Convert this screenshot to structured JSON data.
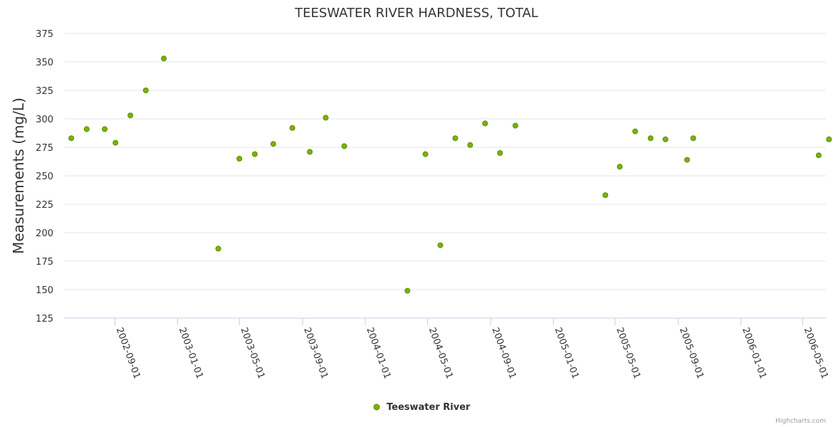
{
  "chart_data": {
    "type": "scatter",
    "title": "TEESWATER RIVER HARDNESS, TOTAL",
    "ylabel": "Measurements (mg/L)",
    "xlabel": "",
    "ylim": [
      125,
      375
    ],
    "yticks": [
      125,
      150,
      175,
      200,
      225,
      250,
      275,
      300,
      325,
      350,
      375
    ],
    "xlim": [
      "2002-05-25",
      "2006-06-15"
    ],
    "xticks": [
      "2002-09-01",
      "2003-01-01",
      "2003-05-01",
      "2003-09-01",
      "2004-01-01",
      "2004-05-01",
      "2004-09-01",
      "2005-01-01",
      "2005-05-01",
      "2005-09-01",
      "2006-01-01",
      "2006-05-01"
    ],
    "grid": true,
    "legend_position": "bottom-center",
    "series": [
      {
        "name": "Teeswater River",
        "color": "#7cb300",
        "points": [
          {
            "x": "2002-06-08",
            "y": 283
          },
          {
            "x": "2002-07-08",
            "y": 291
          },
          {
            "x": "2002-08-12",
            "y": 291
          },
          {
            "x": "2002-09-02",
            "y": 279
          },
          {
            "x": "2002-10-01",
            "y": 303
          },
          {
            "x": "2002-10-31",
            "y": 325
          },
          {
            "x": "2002-12-05",
            "y": 353
          },
          {
            "x": "2003-03-21",
            "y": 186
          },
          {
            "x": "2003-05-01",
            "y": 265
          },
          {
            "x": "2003-05-31",
            "y": 269
          },
          {
            "x": "2003-07-06",
            "y": 278
          },
          {
            "x": "2003-08-12",
            "y": 292
          },
          {
            "x": "2003-09-15",
            "y": 271
          },
          {
            "x": "2003-10-16",
            "y": 301
          },
          {
            "x": "2003-11-21",
            "y": 276
          },
          {
            "x": "2004-03-23",
            "y": 149
          },
          {
            "x": "2004-04-27",
            "y": 269
          },
          {
            "x": "2004-05-26",
            "y": 189
          },
          {
            "x": "2004-06-24",
            "y": 283
          },
          {
            "x": "2004-07-23",
            "y": 277
          },
          {
            "x": "2004-08-21",
            "y": 296
          },
          {
            "x": "2004-09-19",
            "y": 270
          },
          {
            "x": "2004-10-19",
            "y": 294
          },
          {
            "x": "2005-04-12",
            "y": 233
          },
          {
            "x": "2005-05-10",
            "y": 258
          },
          {
            "x": "2005-06-09",
            "y": 289
          },
          {
            "x": "2005-07-09",
            "y": 283
          },
          {
            "x": "2005-08-07",
            "y": 282
          },
          {
            "x": "2005-09-18",
            "y": 264
          },
          {
            "x": "2005-09-30",
            "y": 283
          },
          {
            "x": "2006-06-01",
            "y": 268
          },
          {
            "x": "2006-06-21",
            "y": 282
          }
        ]
      }
    ]
  },
  "credit": "Highcharts.com"
}
